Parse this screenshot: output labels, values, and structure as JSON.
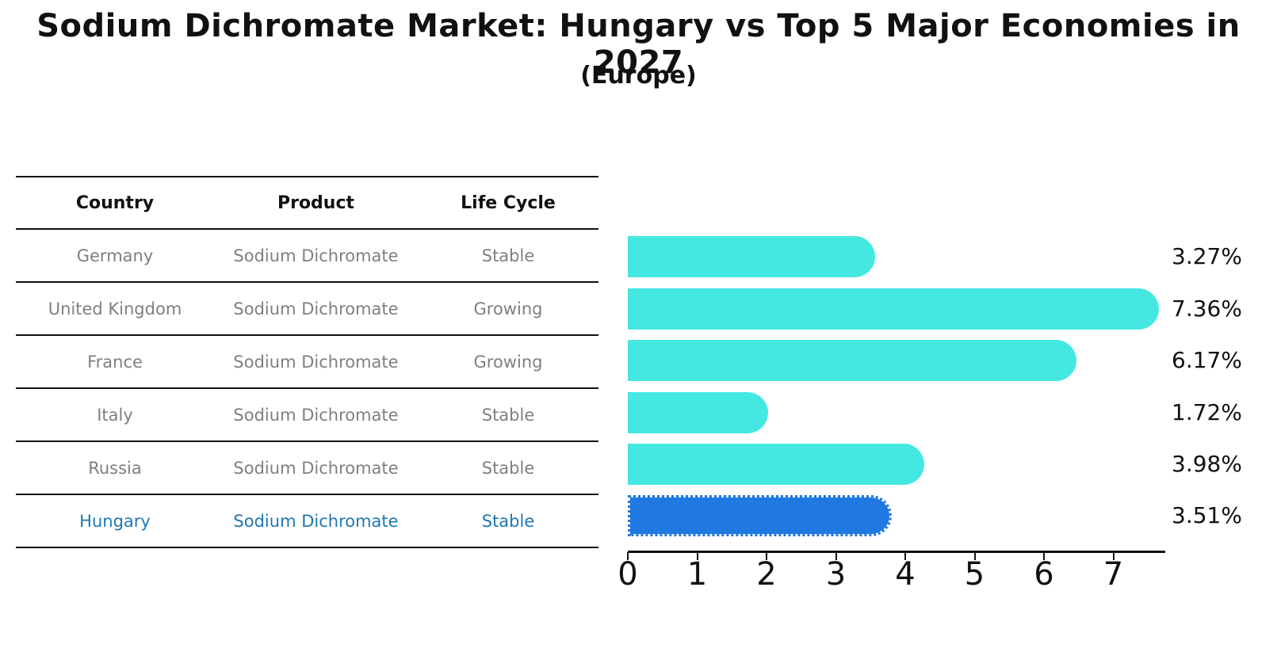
{
  "title": "Sodium Dichromate Market: Hungary vs Top 5 Major Economies in 2027",
  "subtitle": "(Europe)",
  "table": {
    "headers": [
      "Country",
      "Product",
      "Life Cycle"
    ],
    "rows": [
      {
        "country": "Germany",
        "product": "Sodium Dichromate",
        "life_cycle": "Stable",
        "highlight": false
      },
      {
        "country": "United Kingdom",
        "product": "Sodium Dichromate",
        "life_cycle": "Growing",
        "highlight": false
      },
      {
        "country": "France",
        "product": "Sodium Dichromate",
        "life_cycle": "Growing",
        "highlight": false
      },
      {
        "country": "Italy",
        "product": "Sodium Dichromate",
        "life_cycle": "Stable",
        "highlight": false
      },
      {
        "country": "Russia",
        "product": "Sodium Dichromate",
        "life_cycle": "Stable",
        "highlight": false
      },
      {
        "country": "Hungary",
        "product": "Sodium Dichromate",
        "life_cycle": "Stable",
        "highlight": true
      }
    ]
  },
  "chart_data": {
    "type": "bar",
    "orientation": "horizontal",
    "title": "Sodium Dichromate Market: Hungary vs Top 5 Major Economies in 2027",
    "subtitle": "(Europe)",
    "categories": [
      "Germany",
      "United Kingdom",
      "France",
      "Italy",
      "Russia",
      "Hungary"
    ],
    "values": [
      3.27,
      7.36,
      6.17,
      1.72,
      3.98,
      3.51
    ],
    "value_labels": [
      "3.27%",
      "7.36%",
      "6.17%",
      "1.72%",
      "3.98%",
      "3.51%"
    ],
    "xticks": [
      0,
      1,
      2,
      3,
      4,
      5,
      6,
      7
    ],
    "xlim": [
      0,
      7.75
    ],
    "grid": false,
    "legend": false,
    "highlight_index": 5,
    "bar_color": "#45E8E1",
    "highlight_bar_color": "#2079E0"
  },
  "colors": {
    "bar": "#45E8E1",
    "highlight_bar": "#2079E0",
    "highlight_text": "#1F77B4",
    "row_text": "#7F7F7F",
    "heading_text": "#111111",
    "axis": "#111111"
  }
}
